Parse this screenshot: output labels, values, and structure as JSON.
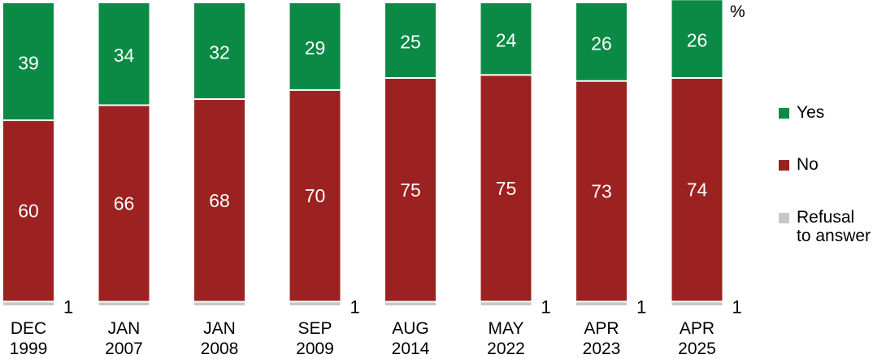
{
  "chart_data": {
    "type": "bar",
    "stacked": true,
    "unit": "%",
    "categories": [
      "DEC\n1999",
      "JAN\n2007",
      "JAN\n2008",
      "SEP\n2009",
      "AUG\n2014",
      "MAY\n2022",
      "APR\n2023",
      "APR\n2025"
    ],
    "series": [
      {
        "name": "Yes",
        "color": "#0a8a45",
        "values": [
          39,
          34,
          32,
          29,
          25,
          24,
          26,
          26
        ]
      },
      {
        "name": "No",
        "color": "#9b2221",
        "values": [
          60,
          66,
          68,
          70,
          75,
          75,
          73,
          74
        ]
      },
      {
        "name": "Refusal\nto answer",
        "color": "#c8c8c8",
        "values": [
          1,
          0,
          0,
          1,
          0,
          1,
          1,
          1
        ]
      }
    ],
    "refusal_labels": [
      "1",
      "",
      "",
      "1",
      "",
      "1",
      "1",
      "1"
    ],
    "ylim": [
      0,
      100
    ],
    "legend_position": "right",
    "grid": false
  }
}
